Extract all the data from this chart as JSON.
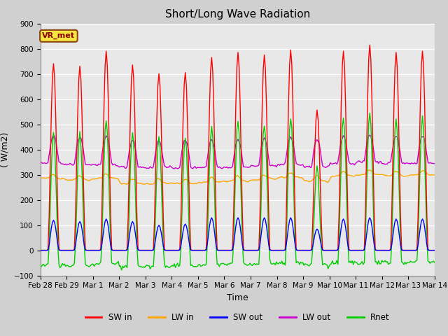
{
  "title": "Short/Long Wave Radiation",
  "ylabel": "( W/m2)",
  "xlabel": "Time",
  "ylim": [
    -100,
    900
  ],
  "annotation": "VR_met",
  "x_tick_labels": [
    "Feb 28",
    "Feb 29",
    "Mar 1",
    "Mar 2",
    "Mar 3",
    "Mar 4",
    "Mar 5",
    "Mar 6",
    "Mar 7",
    "Mar 8",
    "Mar 9",
    "Mar 10",
    "Mar 11",
    "Mar 12",
    "Mar 13",
    "Mar 14"
  ],
  "colors": {
    "SW_in": "#ff0000",
    "LW_in": "#ffa500",
    "SW_out": "#0000ff",
    "LW_out": "#cc00cc",
    "Rnet": "#00cc00"
  },
  "legend_labels": [
    "SW in",
    "LW in",
    "SW out",
    "LW out",
    "Rnet"
  ],
  "fig_bg_color": "#d0d0d0",
  "plot_bg_color": "#e8e8e8",
  "grid_color": "#ffffff",
  "title_fontsize": 11,
  "axis_fontsize": 9,
  "tick_fontsize": 7.5
}
